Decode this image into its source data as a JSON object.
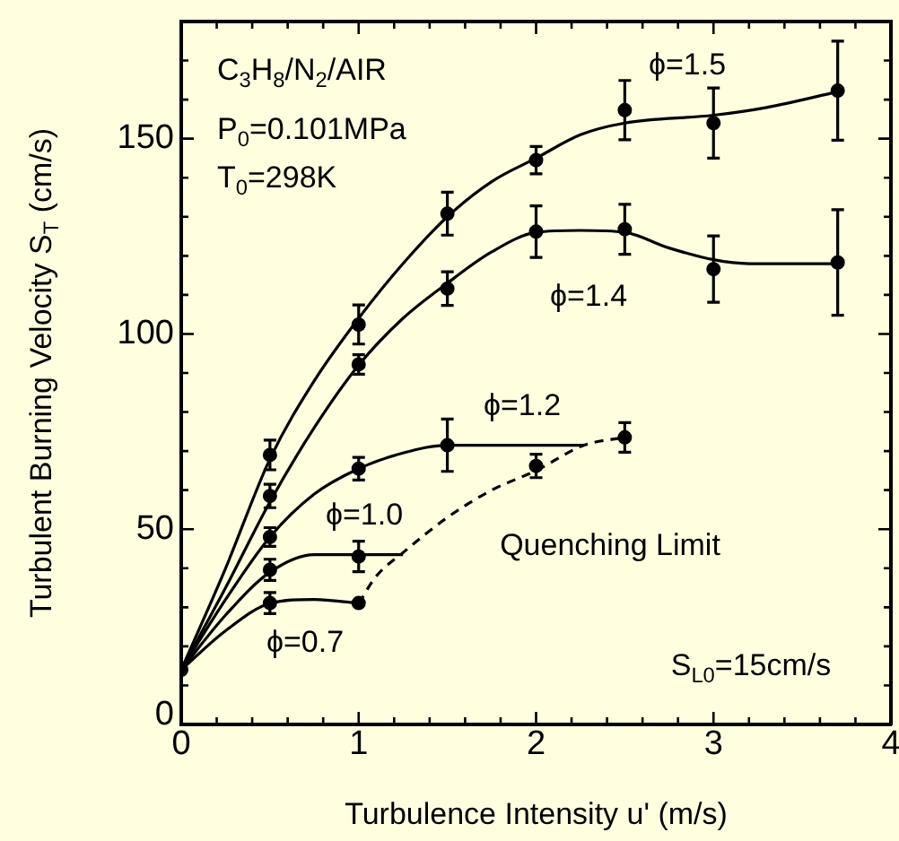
{
  "chart_data": {
    "type": "scatter",
    "xlabel": "Turbulence Intensity u' (m/s)",
    "ylabel": "Turbulent Burning Velocity S$_{T}$ (cm/s)",
    "xlim": [
      0,
      4
    ],
    "ylim": [
      0,
      180
    ],
    "xticks": [
      0,
      {
        "value": 0.2,
        "label": null
      },
      {
        "value": 0.4,
        "label": null
      },
      {
        "value": 0.6,
        "label": null
      },
      {
        "value": 0.8,
        "label": null
      },
      1,
      {
        "value": 1.2,
        "label": null
      },
      {
        "value": 1.4,
        "label": null
      },
      {
        "value": 1.6,
        "label": null
      },
      {
        "value": 1.8,
        "label": null
      },
      2,
      {
        "value": 2.2,
        "label": null
      },
      {
        "value": 2.4,
        "label": null
      },
      {
        "value": 2.6,
        "label": null
      },
      {
        "value": 2.8,
        "label": null
      },
      3,
      {
        "value": 3.2,
        "label": null
      },
      {
        "value": 3.4,
        "label": null
      },
      {
        "value": 3.6,
        "label": null
      },
      {
        "value": 3.8,
        "label": null
      },
      4
    ],
    "yticks": [
      0,
      {
        "value": 10,
        "label": null
      },
      {
        "value": 20,
        "label": null
      },
      {
        "value": 30,
        "label": null
      },
      {
        "value": 40,
        "label": null
      },
      50,
      {
        "value": 60,
        "label": null
      },
      {
        "value": 70,
        "label": null
      },
      {
        "value": 80,
        "label": null
      },
      {
        "value": 90,
        "label": null
      },
      100,
      {
        "value": 110,
        "label": null
      },
      {
        "value": 120,
        "label": null
      },
      {
        "value": 130,
        "label": null
      },
      {
        "value": 140,
        "label": null
      },
      150,
      {
        "value": 160,
        "label": null
      },
      {
        "value": 170,
        "label": null
      },
      {
        "value": 180,
        "label": null
      }
    ],
    "grid": false,
    "legend": false,
    "series": [
      {
        "type": "line",
        "color": "#000000",
        "marker": "none",
        "line_style": "solid",
        "x": [
          0,
          0.25,
          0.5,
          0.75,
          1,
          1.25,
          1.5,
          1.75,
          2,
          2.25,
          2.5,
          3,
          3.3,
          3.7
        ],
        "values": [
          14,
          40,
          68,
          88,
          104,
          118,
          130,
          139,
          145,
          151,
          154,
          156,
          158,
          162
        ]
      },
      {
        "type": "line",
        "color": "#000000",
        "marker": "none",
        "line_style": "solid",
        "x": [
          0,
          0.25,
          0.5,
          0.75,
          1,
          1.25,
          1.5,
          1.75,
          2,
          2.25,
          2.5,
          2.75,
          3,
          3.2,
          3.7
        ],
        "values": [
          14,
          35,
          57,
          76,
          92,
          104,
          113,
          121,
          126,
          126.5,
          126,
          122,
          119,
          118,
          118
        ]
      },
      {
        "type": "line",
        "color": "#000000",
        "marker": "none",
        "line_style": "solid",
        "x": [
          0,
          0.25,
          0.5,
          0.75,
          1,
          1.25,
          1.5,
          2.27
        ],
        "values": [
          14,
          32,
          48,
          59,
          65.5,
          69.5,
          71.5,
          71.5
        ]
      },
      {
        "type": "line",
        "color": "#000000",
        "marker": "none",
        "line_style": "solid",
        "x": [
          0,
          0.25,
          0.5,
          0.75,
          1.25
        ],
        "values": [
          14,
          28,
          39,
          43.5,
          43.5
        ]
      },
      {
        "type": "line",
        "color": "#000000",
        "marker": "none",
        "line_style": "solid",
        "x": [
          0,
          0.25,
          0.5,
          0.75,
          1
        ],
        "values": [
          14,
          24,
          31,
          32,
          31
        ]
      },
      {
        "type": "line",
        "color": "#000000",
        "marker": "none",
        "line_style": "dashed",
        "x": [
          1,
          1.1,
          1.25,
          1.5,
          1.75,
          2,
          2.27,
          2.5
        ],
        "values": [
          31,
          38,
          44,
          53,
          60,
          65,
          71.5,
          73.5
        ]
      },
      {
        "color": "#000000",
        "marker": "circle",
        "x": [
          0.5,
          1,
          1.5,
          2,
          2.5,
          3,
          3.7
        ],
        "values": [
          69,
          102.4,
          130.8,
          144.5,
          157.3,
          154,
          162.3
        ],
        "errors": [
          3.8,
          5,
          5.5,
          3.5,
          7.6,
          9,
          12.7
        ]
      },
      {
        "color": "#000000",
        "marker": "circle",
        "x": [
          0.5,
          1,
          1.5,
          2,
          2.5,
          3,
          3.7
        ],
        "values": [
          58.5,
          92.2,
          111.6,
          126.2,
          126.8,
          116.6,
          118.3
        ],
        "errors": [
          3,
          2.5,
          4.3,
          6.6,
          6.4,
          8.5,
          13.5
        ]
      },
      {
        "color": "#000000",
        "marker": "circle",
        "x": [
          0.5,
          1,
          1.5
        ],
        "values": [
          48,
          65.5,
          71.5
        ],
        "errors": [
          2.4,
          2.9,
          6.7
        ]
      },
      {
        "color": "#000000",
        "marker": "circle",
        "x": [
          0.5,
          1
        ],
        "values": [
          39.6,
          43
        ],
        "errors": [
          2.7,
          3.9
        ]
      },
      {
        "color": "#000000",
        "marker": "circle",
        "x": [
          0,
          0.5,
          1
        ],
        "values": [
          14,
          31.1,
          31.1
        ],
        "errors": [
          null,
          2.7,
          null
        ]
      },
      {
        "color": "#000000",
        "marker": "circle",
        "x": [
          2,
          2.5
        ],
        "values": [
          66.2,
          73.5
        ],
        "errors": [
          3,
          3.8
        ]
      }
    ],
    "annotations": [
      "C$_{3}$H$_{8}$/N$_{2}$/AIR",
      "P$_{0}$=0.101MPa",
      "T$_{0}$=298K",
      "S$_{L0}$=15cm/s",
      "ϕ=1.5",
      "ϕ=1.4",
      "ϕ=1.2",
      "ϕ=1.0",
      "Quenching Limit",
      "ϕ=0.7"
    ]
  }
}
